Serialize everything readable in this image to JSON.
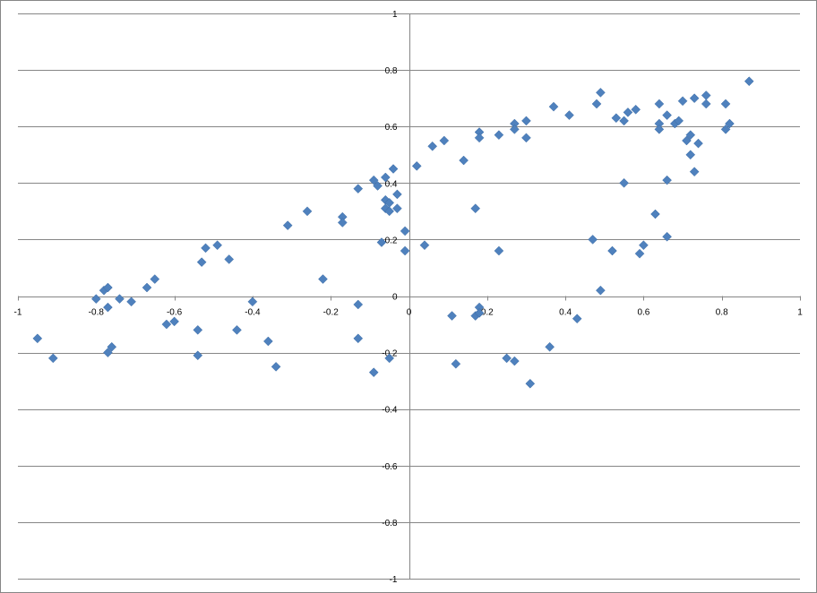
{
  "chart_data": {
    "type": "scatter",
    "title": "",
    "xlabel": "",
    "ylabel": "",
    "xlim": [
      -1,
      1
    ],
    "ylim": [
      -1,
      1
    ],
    "x_ticks": [
      -1,
      -0.8,
      -0.6,
      -0.4,
      -0.2,
      0,
      0.2,
      0.4,
      0.6,
      0.8,
      1
    ],
    "y_ticks": [
      -1,
      -0.8,
      -0.6,
      -0.4,
      -0.2,
      0,
      0.2,
      0.4,
      0.6,
      0.8,
      1
    ],
    "x_tick_labels": [
      "-1",
      "-0.8",
      "-0.6",
      "-0.4",
      "-0.2",
      "0",
      "0.2",
      "0.4",
      "0.6",
      "0.8",
      "1"
    ],
    "y_tick_labels": [
      "-1",
      "-0.8",
      "-0.6",
      "-0.4",
      "-0.2",
      "0",
      "0.2",
      "0.4",
      "0.6",
      "0.8",
      "1"
    ],
    "grid": "horizontal",
    "marker": "diamond",
    "marker_color": "#4f81bd",
    "series": [
      {
        "points": [
          [
            -0.95,
            -0.15
          ],
          [
            -0.91,
            -0.22
          ],
          [
            -0.8,
            -0.01
          ],
          [
            -0.78,
            0.02
          ],
          [
            -0.77,
            0.03
          ],
          [
            -0.77,
            -0.04
          ],
          [
            -0.77,
            -0.2
          ],
          [
            -0.76,
            -0.18
          ],
          [
            -0.74,
            -0.01
          ],
          [
            -0.71,
            -0.02
          ],
          [
            -0.67,
            0.03
          ],
          [
            -0.65,
            0.06
          ],
          [
            -0.62,
            -0.1
          ],
          [
            -0.6,
            -0.09
          ],
          [
            -0.54,
            -0.12
          ],
          [
            -0.54,
            -0.21
          ],
          [
            -0.53,
            0.12
          ],
          [
            -0.52,
            0.17
          ],
          [
            -0.49,
            0.18
          ],
          [
            -0.46,
            0.13
          ],
          [
            -0.44,
            -0.12
          ],
          [
            -0.4,
            -0.02
          ],
          [
            -0.36,
            -0.16
          ],
          [
            -0.34,
            -0.25
          ],
          [
            -0.31,
            0.25
          ],
          [
            -0.26,
            0.3
          ],
          [
            -0.22,
            0.06
          ],
          [
            -0.17,
            0.28
          ],
          [
            -0.17,
            0.26
          ],
          [
            -0.13,
            0.38
          ],
          [
            -0.13,
            -0.03
          ],
          [
            -0.13,
            -0.15
          ],
          [
            -0.09,
            0.41
          ],
          [
            -0.09,
            -0.27
          ],
          [
            -0.08,
            0.39
          ],
          [
            -0.07,
            0.19
          ],
          [
            -0.06,
            0.34
          ],
          [
            -0.06,
            0.31
          ],
          [
            -0.06,
            0.42
          ],
          [
            -0.05,
            0.3
          ],
          [
            -0.05,
            0.33
          ],
          [
            -0.05,
            -0.22
          ],
          [
            -0.04,
            0.45
          ],
          [
            -0.03,
            0.36
          ],
          [
            -0.03,
            0.31
          ],
          [
            -0.01,
            0.23
          ],
          [
            -0.01,
            0.16
          ],
          [
            0.02,
            0.46
          ],
          [
            0.04,
            0.18
          ],
          [
            0.06,
            0.53
          ],
          [
            0.09,
            0.55
          ],
          [
            0.11,
            -0.07
          ],
          [
            0.12,
            -0.24
          ],
          [
            0.14,
            0.48
          ],
          [
            0.17,
            0.31
          ],
          [
            0.17,
            -0.07
          ],
          [
            0.18,
            0.58
          ],
          [
            0.18,
            0.56
          ],
          [
            0.18,
            -0.04
          ],
          [
            0.18,
            -0.06
          ],
          [
            0.23,
            0.57
          ],
          [
            0.23,
            0.16
          ],
          [
            0.25,
            -0.22
          ],
          [
            0.27,
            0.61
          ],
          [
            0.27,
            0.59
          ],
          [
            0.27,
            -0.23
          ],
          [
            0.3,
            0.62
          ],
          [
            0.3,
            0.56
          ],
          [
            0.31,
            -0.31
          ],
          [
            0.36,
            -0.18
          ],
          [
            0.37,
            0.67
          ],
          [
            0.41,
            0.64
          ],
          [
            0.43,
            -0.08
          ],
          [
            0.47,
            0.2
          ],
          [
            0.48,
            0.68
          ],
          [
            0.49,
            0.72
          ],
          [
            0.49,
            0.02
          ],
          [
            0.52,
            0.16
          ],
          [
            0.53,
            0.63
          ],
          [
            0.55,
            0.62
          ],
          [
            0.55,
            0.4
          ],
          [
            0.56,
            0.65
          ],
          [
            0.58,
            0.66
          ],
          [
            0.59,
            0.15
          ],
          [
            0.6,
            0.18
          ],
          [
            0.63,
            0.29
          ],
          [
            0.64,
            0.68
          ],
          [
            0.64,
            0.61
          ],
          [
            0.64,
            0.59
          ],
          [
            0.66,
            0.64
          ],
          [
            0.66,
            0.41
          ],
          [
            0.66,
            0.21
          ],
          [
            0.68,
            0.61
          ],
          [
            0.69,
            0.62
          ],
          [
            0.7,
            0.69
          ],
          [
            0.71,
            0.55
          ],
          [
            0.72,
            0.57
          ],
          [
            0.72,
            0.5
          ],
          [
            0.73,
            0.7
          ],
          [
            0.73,
            0.44
          ],
          [
            0.74,
            0.54
          ],
          [
            0.76,
            0.71
          ],
          [
            0.76,
            0.68
          ],
          [
            0.81,
            0.68
          ],
          [
            0.81,
            0.59
          ],
          [
            0.82,
            0.61
          ],
          [
            0.87,
            0.76
          ]
        ]
      }
    ]
  }
}
